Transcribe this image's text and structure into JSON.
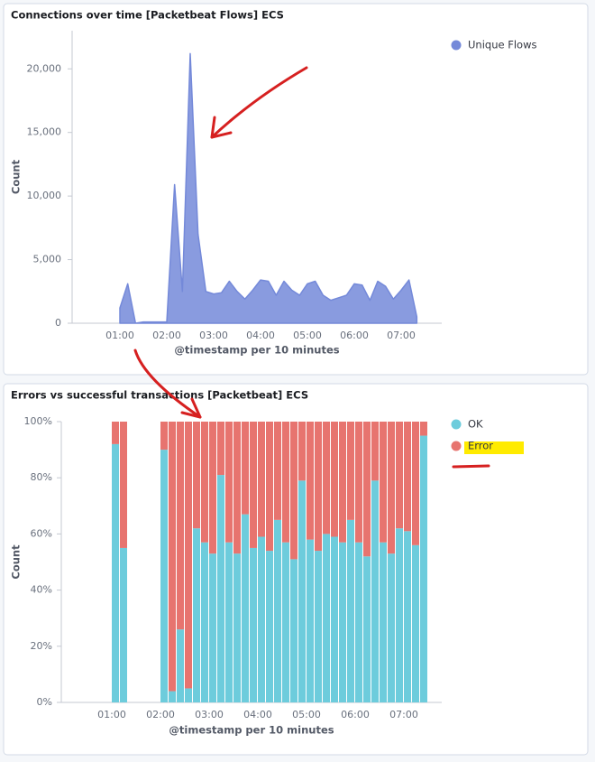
{
  "chart_data": [
    {
      "type": "area",
      "title": "Connections over time [Packetbeat Flows] ECS",
      "y_label": "Count",
      "x_label": "@timestamp per 10 minutes",
      "categories": [
        "01:00",
        null,
        null,
        null,
        null,
        null,
        "02:00",
        null,
        null,
        null,
        null,
        null,
        "03:00",
        null,
        null,
        null,
        null,
        null,
        "04:00",
        null,
        null,
        null,
        null,
        null,
        "05:00",
        null,
        null,
        null,
        null,
        null,
        "06:00",
        null,
        null,
        null,
        null,
        null,
        "07:00",
        null,
        null
      ],
      "series": [
        {
          "name": "Unique Flows",
          "color": "#7489d9",
          "values": [
            1200,
            3100,
            0,
            100,
            100,
            100,
            100,
            10900,
            2500,
            21200,
            7000,
            2500,
            2300,
            2400,
            3300,
            2500,
            1900,
            2600,
            3400,
            3300,
            2200,
            3300,
            2600,
            2200,
            3100,
            3300,
            2200,
            1800,
            2000,
            2200,
            3100,
            3000,
            1800,
            3300,
            2900,
            1900,
            2600,
            3400,
            500
          ]
        }
      ],
      "ylim": [
        0,
        23000
      ],
      "yticks": [
        0,
        {
          "value": 5000,
          "label": "5,000"
        },
        {
          "value": 10000,
          "label": "10,000"
        },
        {
          "value": 15000,
          "label": "15,000"
        },
        {
          "value": 20000,
          "label": "20,000"
        }
      ]
    },
    {
      "type": "bar",
      "stacked": true,
      "title": "Errors vs successful transactions [Packetbeat] ECS",
      "y_label": "Count",
      "x_label": "@timestamp per 10 minutes",
      "categories": [
        "01:00",
        null,
        null,
        null,
        null,
        null,
        "02:00",
        null,
        null,
        null,
        null,
        null,
        "03:00",
        null,
        null,
        null,
        null,
        null,
        "04:00",
        null,
        null,
        null,
        null,
        null,
        "05:00",
        null,
        null,
        null,
        null,
        null,
        "06:00",
        null,
        null,
        null,
        null,
        null,
        "07:00",
        null,
        null
      ],
      "series": [
        {
          "name": "OK",
          "color": "#6dccdc",
          "values": [
            92,
            55,
            null,
            null,
            null,
            null,
            90,
            4,
            26,
            5,
            62,
            57,
            53,
            81,
            57,
            53,
            67,
            55,
            59,
            54,
            65,
            57,
            51,
            79,
            58,
            54,
            60,
            59,
            57,
            65,
            57,
            52,
            79,
            57,
            53,
            62,
            61,
            56,
            95
          ]
        },
        {
          "name": "Error",
          "color": "#e7746f",
          "values": [
            8,
            45,
            null,
            null,
            null,
            null,
            10,
            96,
            74,
            95,
            38,
            43,
            47,
            19,
            43,
            47,
            33,
            45,
            41,
            46,
            35,
            43,
            49,
            21,
            42,
            46,
            40,
            41,
            43,
            35,
            43,
            48,
            21,
            43,
            47,
            38,
            39,
            44,
            5
          ]
        }
      ],
      "ylim": [
        0,
        100
      ],
      "yticks": [
        {
          "value": 0,
          "label": "0%"
        },
        {
          "value": 20,
          "label": "20%"
        },
        {
          "value": 40,
          "label": "40%"
        },
        {
          "value": 60,
          "label": "60%"
        },
        {
          "value": 80,
          "label": "80%"
        },
        {
          "value": 100,
          "label": "100%"
        }
      ]
    }
  ]
}
